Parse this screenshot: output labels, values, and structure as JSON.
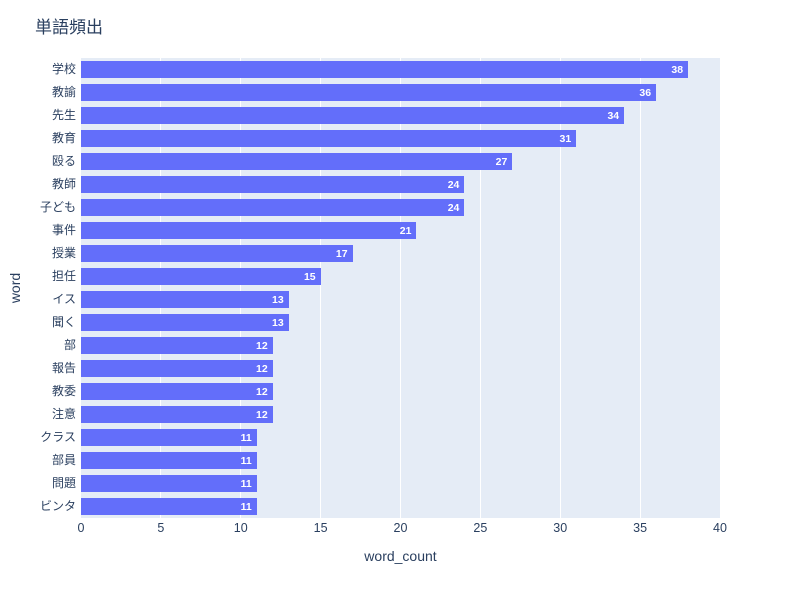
{
  "title": {
    "text": "単語頻出"
  },
  "chart_data": {
    "type": "bar",
    "orientation": "horizontal",
    "title": "単語頻出",
    "xlabel": "word_count",
    "ylabel": "word",
    "xlim": [
      0,
      40
    ],
    "xticks": [
      0,
      5,
      10,
      15,
      20,
      25,
      30,
      35,
      40
    ],
    "categories": [
      "学校",
      "教諭",
      "先生",
      "教育",
      "殴る",
      "教師",
      "子ども",
      "事件",
      "授業",
      "担任",
      "イス",
      "聞く",
      "部",
      "報告",
      "教委",
      "注意",
      "クラス",
      "部員",
      "問題",
      "ビンタ"
    ],
    "values": [
      38,
      36,
      34,
      31,
      27,
      24,
      24,
      21,
      17,
      15,
      13,
      13,
      12,
      12,
      12,
      12,
      11,
      11,
      11,
      11
    ],
    "value_labels": [
      "38",
      "36",
      "34",
      "31",
      "27",
      "24",
      "24",
      "21",
      "17",
      "15",
      "13",
      "13",
      "12",
      "12",
      "12",
      "12",
      "11",
      "11",
      "11",
      "11"
    ],
    "grid": true,
    "legend": false,
    "colors": {
      "bar": "#636efa",
      "plot_background": "#e5ecf6",
      "gridline": "#ffffff",
      "text": "#2a3f5f",
      "value_label": "#ffffff",
      "page_background": "#ffffff"
    }
  }
}
